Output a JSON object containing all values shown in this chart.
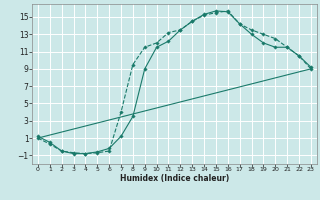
{
  "title": "",
  "xlabel": "Humidex (Indice chaleur)",
  "bg_color": "#cce8e8",
  "grid_color": "#ffffff",
  "line_color": "#1a7a6a",
  "xlim": [
    -0.5,
    23.5
  ],
  "ylim": [
    -2.0,
    16.5
  ],
  "xticks": [
    0,
    1,
    2,
    3,
    4,
    5,
    6,
    7,
    8,
    9,
    10,
    11,
    12,
    13,
    14,
    15,
    16,
    17,
    18,
    19,
    20,
    21,
    22,
    23
  ],
  "yticks": [
    -1,
    1,
    3,
    5,
    7,
    9,
    11,
    13,
    15
  ],
  "line1_x": [
    0,
    1,
    2,
    3,
    4,
    5,
    6,
    7,
    8,
    9,
    10,
    11,
    12,
    13,
    14,
    15,
    16,
    17,
    18,
    19,
    20,
    21,
    22,
    23
  ],
  "line1_y": [
    1.0,
    0.3,
    -0.5,
    -0.7,
    -0.8,
    -0.7,
    -0.5,
    4.0,
    9.5,
    11.5,
    12.0,
    13.2,
    13.5,
    14.5,
    15.2,
    15.5,
    15.7,
    14.2,
    13.5,
    13.0,
    12.5,
    11.5,
    10.5,
    9.0
  ],
  "line2_x": [
    0,
    1,
    2,
    3,
    4,
    5,
    6,
    7,
    8,
    9,
    10,
    11,
    12,
    13,
    14,
    15,
    16,
    17,
    18,
    19,
    20,
    21,
    22,
    23
  ],
  "line2_y": [
    1.2,
    0.5,
    -0.5,
    -0.8,
    -0.8,
    -0.6,
    -0.2,
    1.2,
    3.5,
    9.0,
    11.5,
    12.2,
    13.5,
    14.5,
    15.3,
    15.7,
    15.6,
    14.2,
    13.0,
    12.0,
    11.5,
    11.5,
    10.5,
    9.2
  ],
  "line3_x": [
    0,
    23
  ],
  "line3_y": [
    1.0,
    9.0
  ]
}
